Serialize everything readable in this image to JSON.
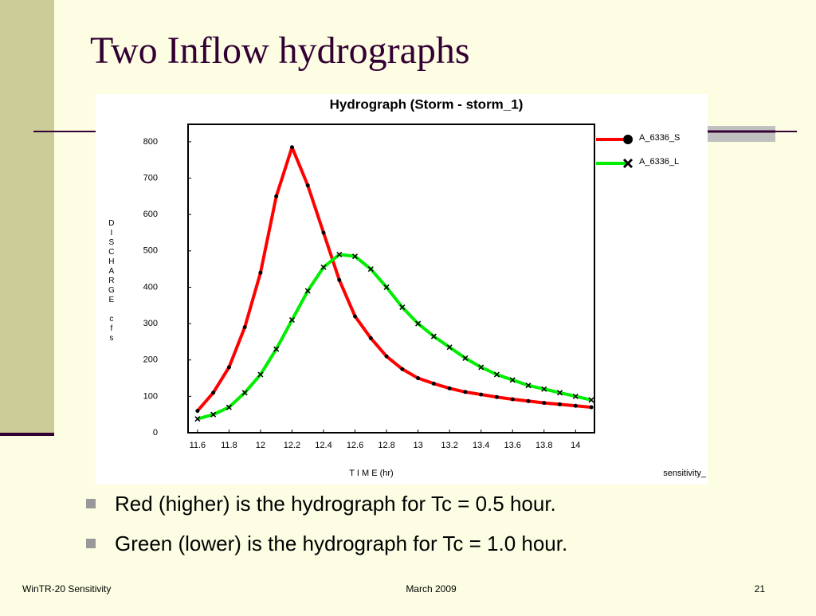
{
  "slide": {
    "title": "Two Inflow hydrographs",
    "bullets": [
      "Red (higher) is the hydrograph for Tc = 0.5 hour.",
      "Green (lower) is the hydrograph for Tc = 1.0 hour."
    ],
    "footer": {
      "left": "WinTR-20 Sensitivity",
      "center": "March 2009",
      "right": "21"
    }
  },
  "chart_data": {
    "type": "line",
    "title": "Hydrograph (Storm - storm_1)",
    "x_label": "T I M E (hr)",
    "y_label": "DISCHARGE cfs",
    "corner_note": "sensitivity_",
    "x": [
      11.6,
      11.7,
      11.8,
      11.9,
      12,
      12.1,
      12.2,
      12.3,
      12.4,
      12.5,
      12.6,
      12.7,
      12.8,
      12.9,
      13,
      13.1,
      13.2,
      13.3,
      13.4,
      13.5,
      13.6,
      13.7,
      13.8,
      13.9,
      14,
      14.1
    ],
    "series": [
      {
        "name": "A_6336_S",
        "color": "#ff0000",
        "marker": "dot",
        "values": [
          60,
          110,
          180,
          290,
          440,
          650,
          785,
          680,
          550,
          420,
          320,
          260,
          210,
          175,
          150,
          135,
          122,
          112,
          105,
          98,
          92,
          87,
          82,
          78,
          74,
          70
        ]
      },
      {
        "name": "A_6336_L",
        "color": "#00ee00",
        "marker": "cross",
        "values": [
          38,
          50,
          70,
          110,
          160,
          230,
          310,
          390,
          455,
          490,
          485,
          450,
          400,
          345,
          300,
          265,
          235,
          205,
          180,
          160,
          145,
          130,
          120,
          110,
          100,
          90
        ]
      }
    ],
    "xlim": [
      11.54,
      14.12
    ],
    "xticks": [
      11.6,
      11.8,
      12,
      12.2,
      12.4,
      12.6,
      12.8,
      13,
      13.2,
      13.4,
      13.6,
      13.8,
      14
    ],
    "ylim": [
      0,
      848
    ],
    "yticks": [
      0,
      100,
      200,
      300,
      400,
      500,
      600,
      700,
      800
    ],
    "grid": false
  }
}
